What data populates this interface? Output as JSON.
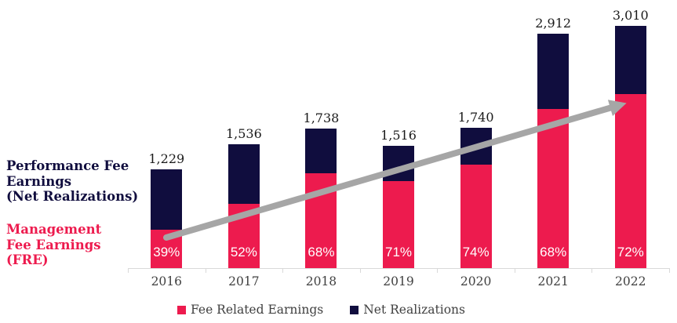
{
  "annotations": {
    "performance_fee": {
      "lines": [
        "Performance Fee",
        "Earnings",
        "(Net Realizations)"
      ],
      "color": "#100d3e"
    },
    "management_fee": {
      "lines": [
        "Management",
        "Fee Earnings",
        "(FRE)"
      ],
      "color": "#ed1b4e"
    }
  },
  "chart_data": {
    "type": "bar",
    "stacked": true,
    "categories": [
      "2016",
      "2017",
      "2018",
      "2019",
      "2020",
      "2021",
      "2022"
    ],
    "totals": [
      1229,
      1536,
      1738,
      1516,
      1740,
      2912,
      3010
    ],
    "total_labels": [
      "1,229",
      "1,536",
      "1,738",
      "1,516",
      "1,740",
      "2,912",
      "3,010"
    ],
    "fre_share_pct": [
      39,
      52,
      68,
      71,
      74,
      68,
      72
    ],
    "fre_share_labels": [
      "39%",
      "52%",
      "68%",
      "71%",
      "74%",
      "68%",
      "72%"
    ],
    "series": [
      {
        "name": "Fee Related Earnings",
        "color": "#ed1b4e",
        "values_estimated": [
          479,
          799,
          1182,
          1076,
          1288,
          1980,
          2167
        ]
      },
      {
        "name": "Net Realizations",
        "color": "#100d3e",
        "values_estimated": [
          750,
          737,
          556,
          440,
          452,
          932,
          843
        ]
      }
    ],
    "xlabel": "",
    "ylabel": "",
    "ylim": [
      0,
      3330
    ],
    "grid": false,
    "legend_position": "bottom",
    "trend_arrow": {
      "color": "#a6a6a6",
      "direction": "up-right"
    }
  },
  "legend": {
    "items": [
      {
        "label": "Fee Related Earnings",
        "color": "#ed1b4e"
      },
      {
        "label": "Net Realizations",
        "color": "#100d3e"
      }
    ]
  },
  "axis": {
    "line_color": "#d9d9d9",
    "year_text_color": "#404040"
  }
}
